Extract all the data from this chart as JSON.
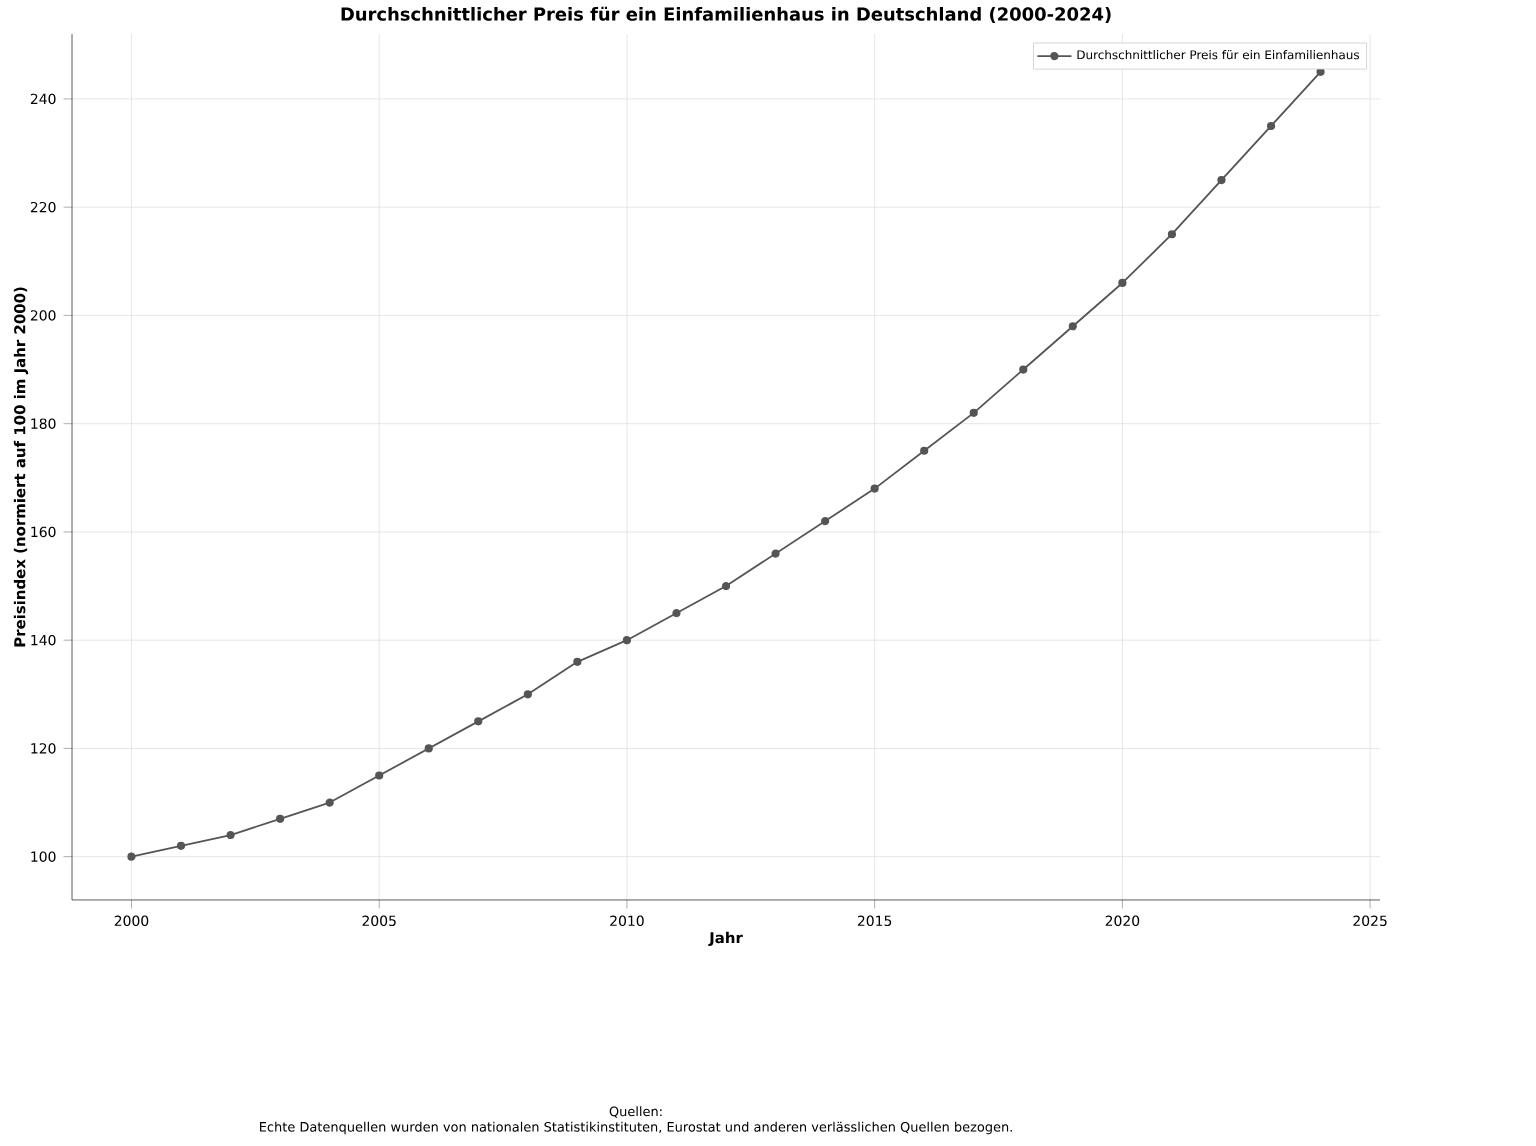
{
  "chart_data": {
    "type": "line",
    "title": "Durchschnittlicher Preis für ein Einfamilienhaus in Deutschland (2000-2024)",
    "xlabel": "Jahr",
    "ylabel": "Preisindex (normiert auf 100 im Jahr 2000)",
    "x": [
      2000,
      2001,
      2002,
      2003,
      2004,
      2005,
      2006,
      2007,
      2008,
      2009,
      2010,
      2011,
      2012,
      2013,
      2014,
      2015,
      2016,
      2017,
      2018,
      2019,
      2020,
      2021,
      2022,
      2023,
      2024
    ],
    "series": [
      {
        "name": "Durchschnittlicher Preis für ein Einfamilienhaus",
        "color": "#555555",
        "values": [
          100,
          102,
          104,
          107,
          110,
          115,
          120,
          125,
          130,
          136,
          140,
          145,
          150,
          156,
          162,
          168,
          175,
          182,
          190,
          198,
          206,
          215,
          225,
          235,
          245
        ]
      }
    ],
    "xlim": [
      1998.8,
      2025.2
    ],
    "ylim": [
      92,
      252
    ],
    "xticks": [
      2000,
      2005,
      2010,
      2015,
      2020,
      2025
    ],
    "yticks": [
      100,
      120,
      140,
      160,
      180,
      200,
      220,
      240
    ],
    "grid": true,
    "legend": "top right",
    "marker": "circle",
    "line_style": "solid",
    "annotations": [
      "Quellen:",
      "Echte Datenquellen wurden von nationalen Statistikinstituten, Eurostat und anderen verlässlichen Quellen bezogen."
    ]
  }
}
